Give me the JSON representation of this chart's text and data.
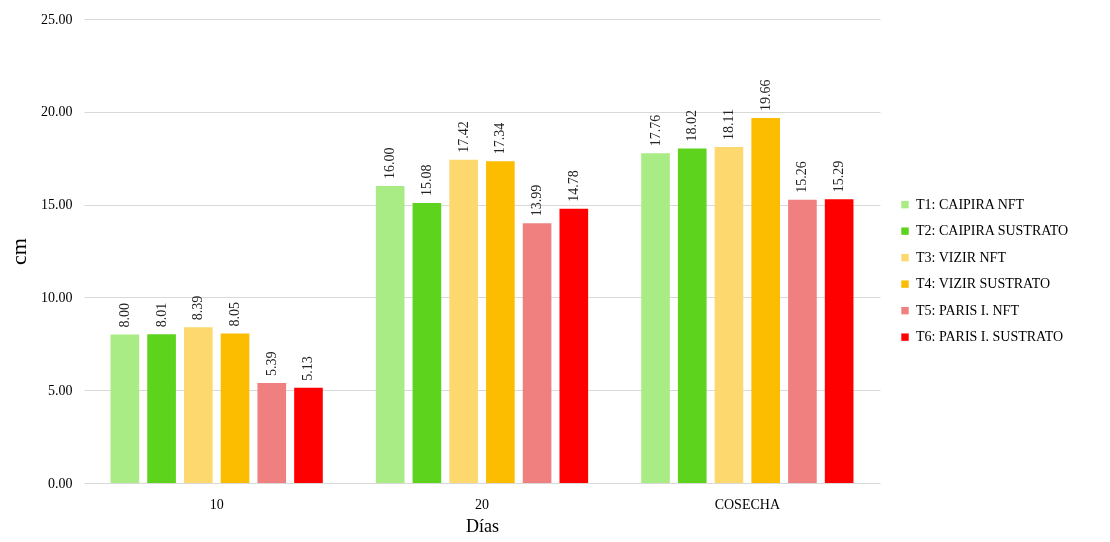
{
  "chart_data": {
    "type": "bar",
    "xlabel": "Días",
    "ylabel": "cm",
    "categories": [
      "10",
      "20",
      "COSECHA"
    ],
    "series": [
      {
        "name": "T1: CAIPIRA NFT",
        "color": "#a9eb84",
        "values": [
          8.0,
          16.0,
          17.76
        ],
        "value_labels": [
          "8.00",
          "16.00",
          "17.76"
        ]
      },
      {
        "name": "T2: CAIPIRA SUSTRATO",
        "color": "#5dd31e",
        "values": [
          8.01,
          15.08,
          18.02
        ],
        "value_labels": [
          "8.01",
          "15.08",
          "18.02"
        ]
      },
      {
        "name": "T3: VIZIR NFT",
        "color": "#fdd86f",
        "values": [
          8.39,
          17.42,
          18.11
        ],
        "value_labels": [
          "8.39",
          "17.42",
          "18.11"
        ]
      },
      {
        "name": "T4: VIZIR SUSTRATO",
        "color": "#fcbd00",
        "values": [
          8.05,
          17.34,
          19.66
        ],
        "value_labels": [
          "8.05",
          "17.34",
          "19.66"
        ]
      },
      {
        "name": "T5: PARIS I. NFT",
        "color": "#f08080",
        "values": [
          5.39,
          13.99,
          15.26
        ],
        "value_labels": [
          "5.39",
          "13.99",
          "15.26"
        ]
      },
      {
        "name": "T6: PARIS I. SUSTRATO",
        "color": "#ff0000",
        "values": [
          5.13,
          14.78,
          15.29
        ],
        "value_labels": [
          "5.13",
          "14.78",
          "15.29"
        ]
      }
    ],
    "ylim": [
      0,
      25
    ],
    "yticks": [
      {
        "value": 0,
        "label": "0.00"
      },
      {
        "value": 5,
        "label": "5.00"
      },
      {
        "value": 10,
        "label": "10.00"
      },
      {
        "value": 15,
        "label": "15.00"
      },
      {
        "value": 20,
        "label": "20.00"
      },
      {
        "value": 25,
        "label": "25.00"
      }
    ],
    "grid": "y",
    "legend": "right"
  }
}
